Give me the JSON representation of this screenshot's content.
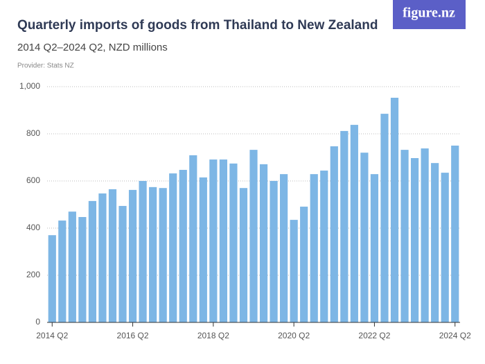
{
  "logo": "figure.nz",
  "chart_data": {
    "type": "bar",
    "title": "Quarterly imports of goods from Thailand to New Zealand",
    "subtitle": "2014 Q2–2024 Q2, NZD millions",
    "provider": "Provider: Stats NZ",
    "categories": [
      "2014 Q2",
      null,
      null,
      null,
      null,
      null,
      null,
      null,
      "2016 Q2",
      null,
      null,
      null,
      null,
      null,
      null,
      null,
      "2018 Q2",
      null,
      null,
      null,
      null,
      null,
      null,
      null,
      "2020 Q2",
      null,
      null,
      null,
      null,
      null,
      null,
      null,
      "2022 Q2",
      null,
      null,
      null,
      null,
      null,
      null,
      null,
      "2024 Q2"
    ],
    "values": [
      370,
      432,
      470,
      447,
      515,
      547,
      565,
      494,
      562,
      600,
      574,
      570,
      632,
      647,
      709,
      615,
      691,
      691,
      674,
      570,
      732,
      671,
      600,
      629,
      435,
      491,
      629,
      644,
      747,
      812,
      838,
      720,
      629,
      885,
      953,
      732,
      697,
      738,
      676,
      635,
      750
    ],
    "color": "#7db6e5",
    "ylim": [
      0,
      1000
    ],
    "yticks": [
      0,
      200,
      400,
      600,
      800,
      {
        "value": 1000,
        "label": "1,000"
      }
    ],
    "grid": true
  }
}
